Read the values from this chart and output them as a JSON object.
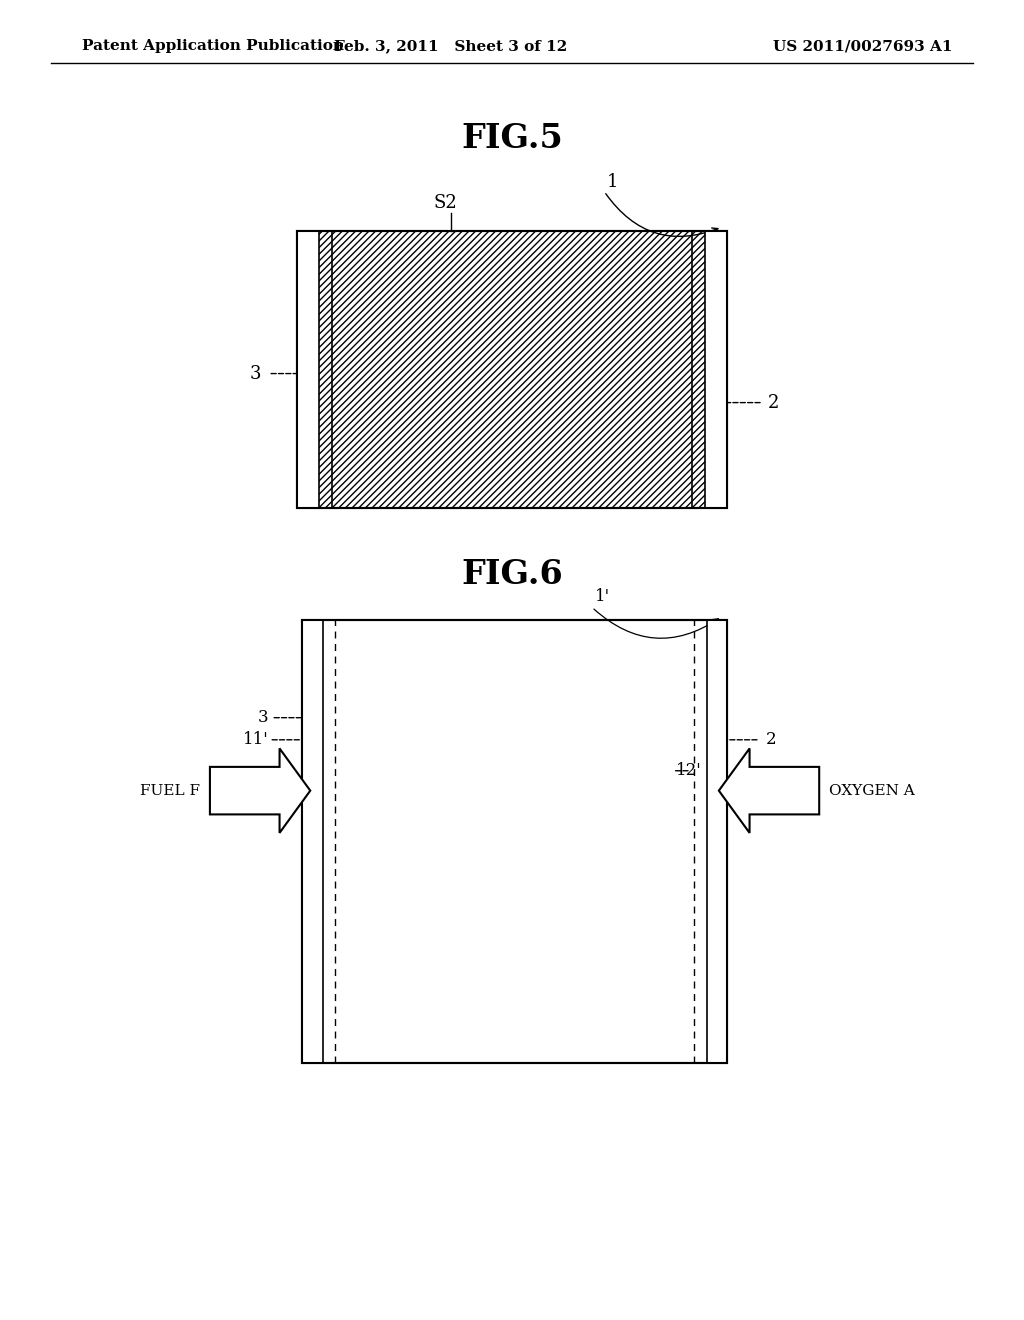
{
  "bg_color": "#ffffff",
  "header_left": "Patent Application Publication",
  "header_mid": "Feb. 3, 2011   Sheet 3 of 12",
  "header_right": "US 2011/0027693 A1",
  "fig5_title": "FIG.5",
  "fig6_title": "FIG.6",
  "page_width": 10.24,
  "page_height": 13.2
}
